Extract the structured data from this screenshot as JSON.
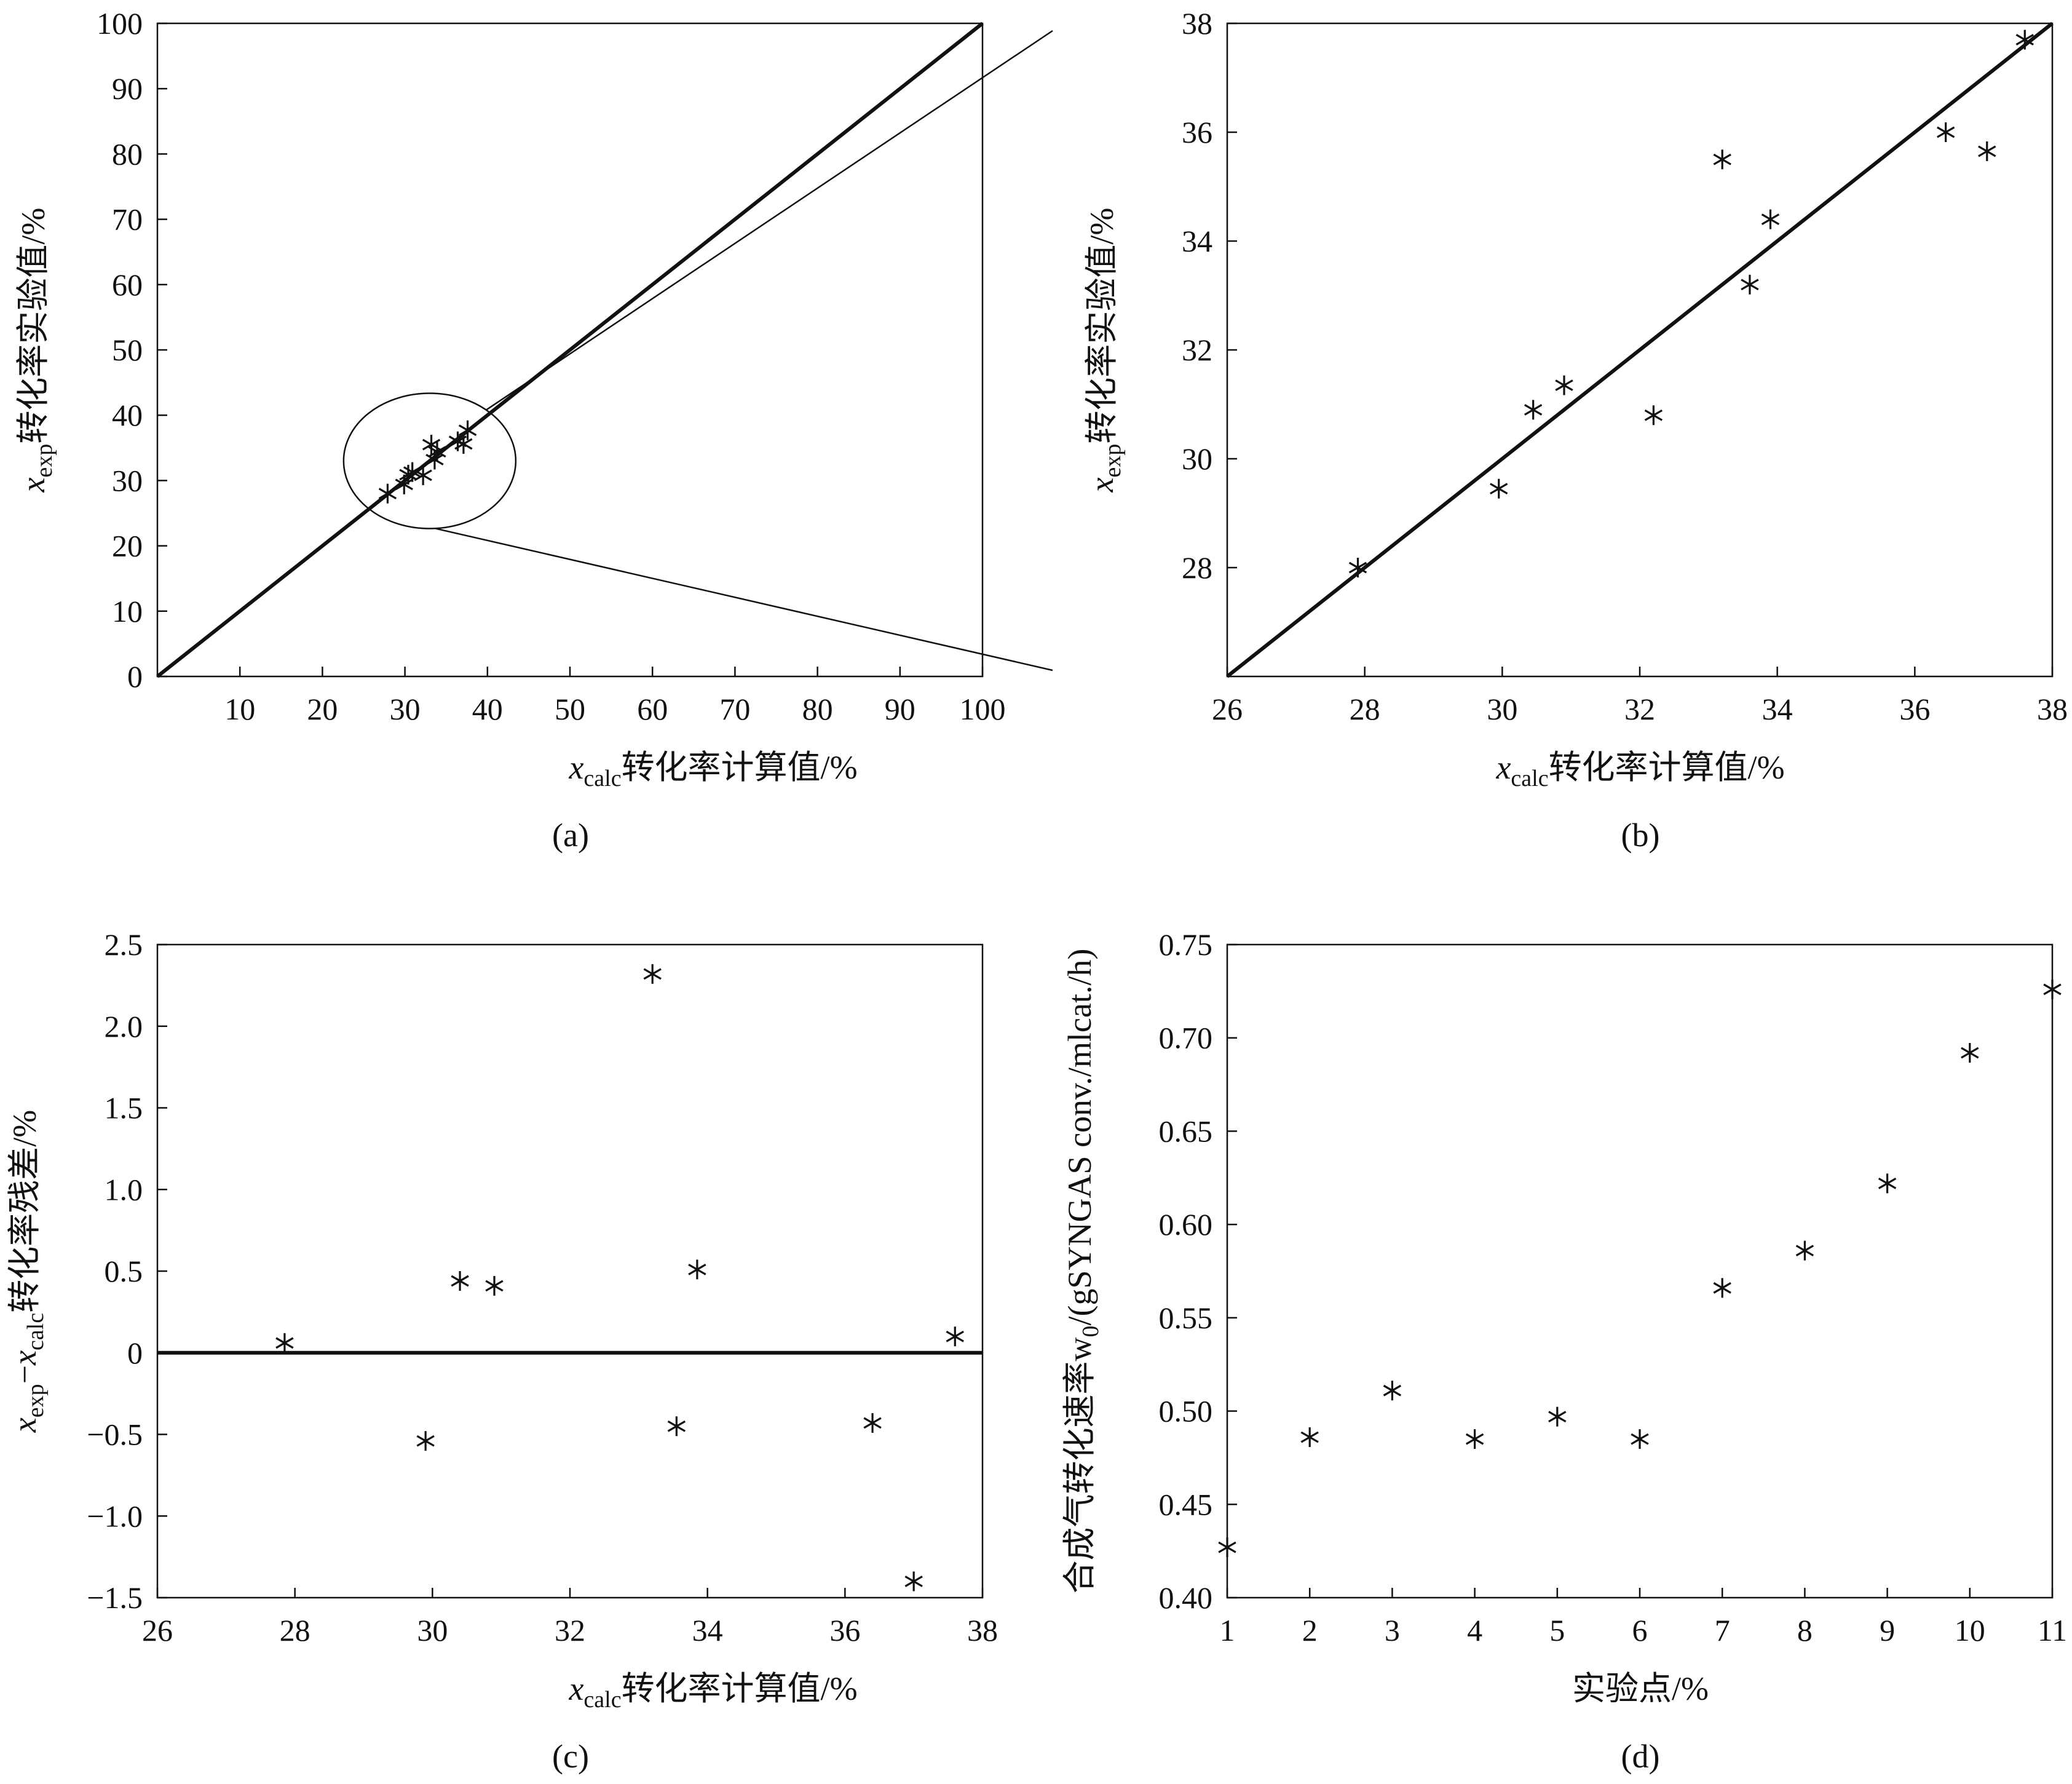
{
  "chart_data": [
    {
      "id": "a",
      "type": "scatter",
      "caption": "(a)",
      "xlabel_var": "x",
      "xlabel_sub": "calc",
      "xlabel_text": "转化率计算值/%",
      "ylabel_var": "x",
      "ylabel_sub": "exp",
      "ylabel_text": "转化率实验值/%",
      "xlim": [
        0,
        100
      ],
      "ylim": [
        0,
        100
      ],
      "xticks": [
        10,
        20,
        30,
        40,
        50,
        60,
        70,
        80,
        90,
        100
      ],
      "xtick_labels": [
        "10",
        "20",
        "30",
        "40",
        "50",
        "60",
        "70",
        "80",
        "90",
        "100"
      ],
      "yticks": [
        0,
        10,
        20,
        30,
        40,
        50,
        60,
        70,
        80,
        90,
        100
      ],
      "ytick_labels": [
        "0",
        "10",
        "20",
        "30",
        "40",
        "50",
        "60",
        "70",
        "80",
        "90",
        "100"
      ],
      "reference_line": "y = x",
      "zoom_circle_center": [
        33,
        33
      ],
      "points": [
        {
          "x": 27.9,
          "y": 28.0
        },
        {
          "x": 29.9,
          "y": 29.4
        },
        {
          "x": 30.4,
          "y": 30.9
        },
        {
          "x": 30.9,
          "y": 31.3
        },
        {
          "x": 32.2,
          "y": 30.8
        },
        {
          "x": 33.2,
          "y": 35.5
        },
        {
          "x": 33.6,
          "y": 33.2
        },
        {
          "x": 33.9,
          "y": 34.4
        },
        {
          "x": 36.4,
          "y": 36.0
        },
        {
          "x": 37.1,
          "y": 35.6
        },
        {
          "x": 37.6,
          "y": 37.7
        }
      ]
    },
    {
      "id": "b",
      "type": "scatter",
      "caption": "(b)",
      "xlabel_var": "x",
      "xlabel_sub": "calc",
      "xlabel_text": "转化率计算值/%",
      "ylabel_var": "x",
      "ylabel_sub": "exp",
      "ylabel_text": "转化率实验值/%",
      "xlim": [
        26,
        38
      ],
      "ylim": [
        26,
        38
      ],
      "xticks": [
        26,
        28,
        30,
        32,
        34,
        36,
        38
      ],
      "xtick_labels": [
        "26",
        "28",
        "30",
        "32",
        "34",
        "36",
        "38"
      ],
      "yticks": [
        28,
        30,
        32,
        34,
        36,
        38
      ],
      "ytick_labels": [
        "28",
        "30",
        "32",
        "34",
        "36",
        "38"
      ],
      "reference_line": "y = x",
      "points": [
        {
          "x": 27.9,
          "y": 28.0
        },
        {
          "x": 29.95,
          "y": 29.45
        },
        {
          "x": 30.45,
          "y": 30.9
        },
        {
          "x": 30.9,
          "y": 31.35
        },
        {
          "x": 32.2,
          "y": 30.8
        },
        {
          "x": 33.2,
          "y": 35.5
        },
        {
          "x": 33.6,
          "y": 33.2
        },
        {
          "x": 33.9,
          "y": 34.4
        },
        {
          "x": 36.45,
          "y": 36.0
        },
        {
          "x": 37.05,
          "y": 35.65
        },
        {
          "x": 37.6,
          "y": 37.7
        }
      ]
    },
    {
      "id": "c",
      "type": "scatter",
      "caption": "(c)",
      "xlabel_var": "x",
      "xlabel_sub": "calc",
      "xlabel_text": "转化率计算值/%",
      "ylabel_var1": "x",
      "ylabel_sub1": "exp",
      "ylabel_mid": "−",
      "ylabel_var2": "x",
      "ylabel_sub2": "calc",
      "ylabel_text": "转化率残差/%",
      "xlim": [
        26,
        38
      ],
      "ylim": [
        -1.5,
        2.5
      ],
      "xticks": [
        26,
        28,
        30,
        32,
        34,
        36,
        38
      ],
      "xtick_labels": [
        "26",
        "28",
        "30",
        "32",
        "34",
        "36",
        "38"
      ],
      "yticks": [
        -1.5,
        -1.0,
        -0.5,
        0,
        0.5,
        1.0,
        1.5,
        2.0,
        2.5
      ],
      "ytick_labels": [
        "−1.5",
        "−1.0",
        "−0.5",
        "0",
        "0.5",
        "1.0",
        "1.5",
        "2.0",
        "2.5"
      ],
      "reference_line": "y = 0",
      "points": [
        {
          "x": 27.85,
          "y": 0.06
        },
        {
          "x": 29.9,
          "y": -0.54
        },
        {
          "x": 30.4,
          "y": 0.44
        },
        {
          "x": 30.9,
          "y": 0.41
        },
        {
          "x": 33.2,
          "y": 2.32
        },
        {
          "x": 33.55,
          "y": -0.45
        },
        {
          "x": 33.85,
          "y": 0.51
        },
        {
          "x": 36.4,
          "y": -0.43
        },
        {
          "x": 37.0,
          "y": -1.4
        },
        {
          "x": 37.6,
          "y": 0.1
        }
      ]
    },
    {
      "id": "d",
      "type": "scatter",
      "caption": "(d)",
      "xlabel_text": "实验点/%",
      "ylabel_pre": "合成气转化速率w",
      "ylabel_sub": "0",
      "ylabel_post": "/(gSYNGAS conv./mlcat./h)",
      "xlim": [
        1,
        11
      ],
      "ylim": [
        0.4,
        0.75
      ],
      "xticks": [
        1,
        2,
        3,
        4,
        5,
        6,
        7,
        8,
        9,
        10,
        11
      ],
      "xtick_labels": [
        "1",
        "2",
        "3",
        "4",
        "5",
        "6",
        "7",
        "8",
        "9",
        "10",
        "11"
      ],
      "yticks": [
        0.4,
        0.45,
        0.5,
        0.55,
        0.6,
        0.65,
        0.7,
        0.75
      ],
      "ytick_labels": [
        "0.40",
        "0.45",
        "0.50",
        "0.55",
        "0.60",
        "0.65",
        "0.70",
        "0.75"
      ],
      "points": [
        {
          "x": 1,
          "y": 0.427
        },
        {
          "x": 2,
          "y": 0.486
        },
        {
          "x": 3,
          "y": 0.511
        },
        {
          "x": 4,
          "y": 0.485
        },
        {
          "x": 5,
          "y": 0.497
        },
        {
          "x": 6,
          "y": 0.485
        },
        {
          "x": 7,
          "y": 0.566
        },
        {
          "x": 8,
          "y": 0.586
        },
        {
          "x": 9,
          "y": 0.622
        },
        {
          "x": 10,
          "y": 0.692
        },
        {
          "x": 11,
          "y": 0.726
        }
      ]
    }
  ]
}
